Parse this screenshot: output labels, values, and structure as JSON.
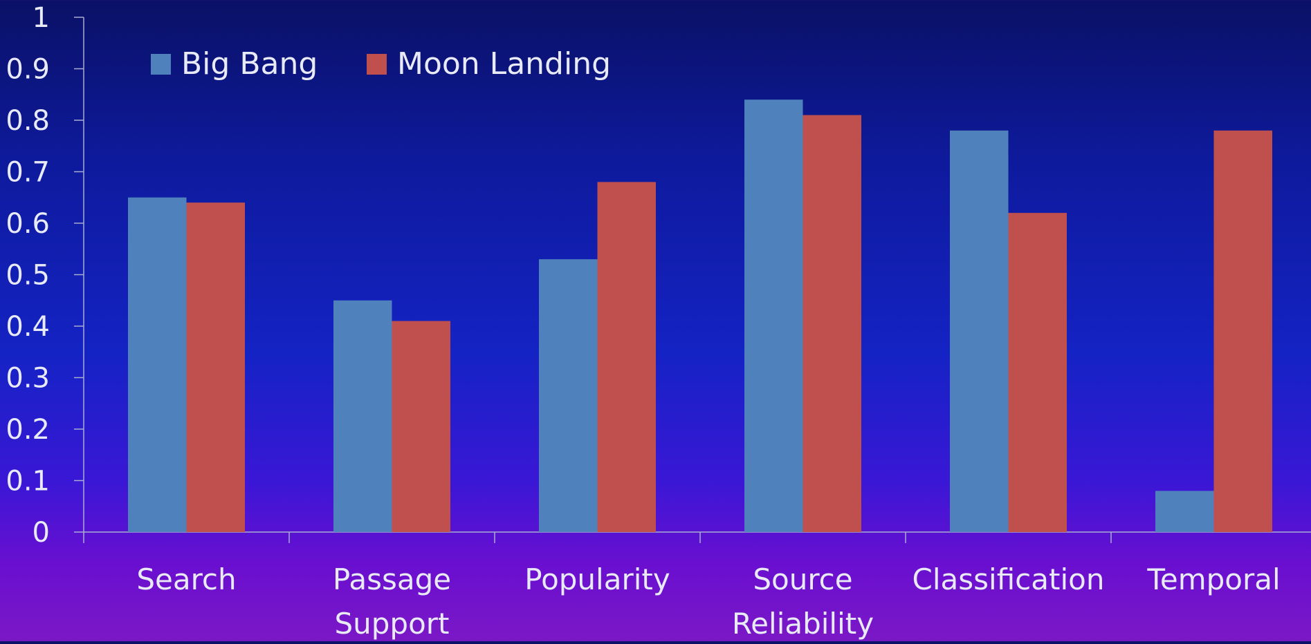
{
  "chart_data": {
    "type": "bar",
    "categories": [
      "Search",
      "Passage Support",
      "Popularity",
      "Source Reliability",
      "Classification",
      "Temporal"
    ],
    "category_lines": [
      [
        "Search"
      ],
      [
        "Passage",
        "Support"
      ],
      [
        "Popularity"
      ],
      [
        "Source",
        "Reliability"
      ],
      [
        "Classification"
      ],
      [
        "Temporal"
      ]
    ],
    "series": [
      {
        "name": "Big Bang",
        "values": [
          0.65,
          0.45,
          0.53,
          0.84,
          0.78,
          0.08
        ],
        "color": "#4f81bd"
      },
      {
        "name": "Moon Landing",
        "values": [
          0.64,
          0.41,
          0.68,
          0.81,
          0.62,
          0.78
        ],
        "color": "#c0504d"
      }
    ],
    "yticks": [
      "0",
      "0.1",
      "0.2",
      "0.3",
      "0.4",
      "0.5",
      "0.6",
      "0.7",
      "0.8",
      "0.9",
      "1"
    ],
    "ylim": [
      0,
      1
    ],
    "grid": false,
    "legend_position": "top-left"
  }
}
